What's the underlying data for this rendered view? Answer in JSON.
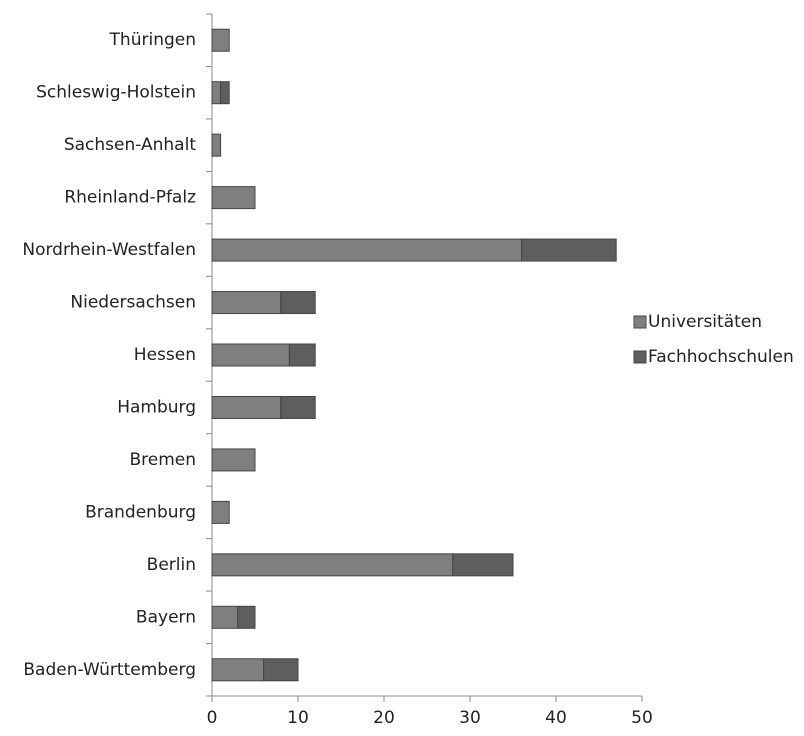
{
  "chart_data": {
    "type": "stacked-bar-horizontal",
    "categories": [
      "Baden-Württemberg",
      "Bayern",
      "Berlin",
      "Brandenburg",
      "Bremen",
      "Hamburg",
      "Hessen",
      "Niedersachsen",
      "Nordrhein-Westfalen",
      "Rheinland-Pfalz",
      "Sachsen-Anhalt",
      "Schleswig-Holstein",
      "Thüringen"
    ],
    "series": [
      {
        "name": "Universitäten",
        "color": "#7f7f7f",
        "values": [
          6,
          3,
          28,
          2,
          5,
          8,
          9,
          8,
          36,
          5,
          1,
          1,
          2
        ]
      },
      {
        "name": "Fachhochschulen",
        "color": "#5e5e5e",
        "values": [
          4,
          2,
          7,
          0,
          0,
          4,
          3,
          4,
          11,
          0,
          0,
          1,
          0
        ]
      }
    ],
    "xlim": [
      0,
      50
    ],
    "xticks": [
      0,
      10,
      20,
      30,
      40,
      50
    ],
    "legend": "right"
  }
}
